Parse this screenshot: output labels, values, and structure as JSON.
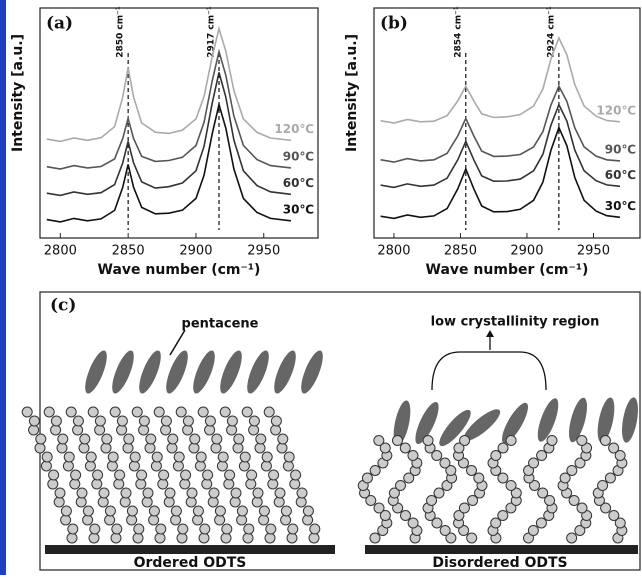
{
  "chart_data": [
    {
      "type": "line",
      "panel_label": "(a)",
      "x_label": "Wave number (cm⁻¹)",
      "y_label": "Intensity [a.u.]",
      "x": [
        2790,
        2800,
        2810,
        2820,
        2830,
        2840,
        2846,
        2850,
        2854,
        2860,
        2870,
        2880,
        2890,
        2900,
        2906,
        2912,
        2917,
        2922,
        2928,
        2935,
        2945,
        2955,
        2970
      ],
      "xlim": [
        2785,
        2990
      ],
      "xticks": [
        2800,
        2850,
        2900,
        2950
      ],
      "ylim": [
        0,
        10
      ],
      "series": [
        {
          "name": "30℃",
          "color": "#111111",
          "values": [
            0.8,
            0.7,
            0.85,
            0.75,
            0.83,
            1.2,
            2.2,
            3.2,
            2.2,
            1.33,
            1.05,
            1.08,
            1.21,
            1.72,
            2.74,
            4.53,
            5.8,
            4.78,
            3.0,
            1.72,
            1.11,
            0.85,
            0.75
          ]
        },
        {
          "name": "60℃",
          "color": "#333333",
          "values": [
            1.95,
            1.85,
            2.0,
            1.9,
            1.97,
            2.32,
            3.26,
            4.2,
            3.26,
            2.44,
            2.17,
            2.23,
            2.39,
            2.92,
            3.99,
            5.86,
            7.2,
            6.13,
            4.26,
            2.92,
            2.28,
            2.01,
            1.9
          ]
        },
        {
          "name": "90℃",
          "color": "#555555",
          "values": [
            3.1,
            3.0,
            3.15,
            3.05,
            3.11,
            3.44,
            4.32,
            5.2,
            4.32,
            3.55,
            3.33,
            3.37,
            3.51,
            4.02,
            5.04,
            6.83,
            8.1,
            7.08,
            5.3,
            4.02,
            3.41,
            3.15,
            3.05
          ]
        },
        {
          "name": "120℃",
          "color": "#aaaaaa",
          "values": [
            4.3,
            4.2,
            4.35,
            4.25,
            4.36,
            4.84,
            6.12,
            7.4,
            6.12,
            5.0,
            4.6,
            4.55,
            4.69,
            5.18,
            6.16,
            7.88,
            9.1,
            8.12,
            6.41,
            5.18,
            4.59,
            4.35,
            4.25
          ]
        }
      ],
      "annotations": [
        {
          "label": "2850 cm⁻¹",
          "x": 2850
        },
        {
          "label": "2917 cm⁻¹",
          "x": 2917
        }
      ]
    },
    {
      "type": "line",
      "panel_label": "(b)",
      "x_label": "Wave number (cm⁻¹)",
      "y_label": "Intensity [a.u.]",
      "x": [
        2790,
        2800,
        2810,
        2820,
        2830,
        2840,
        2848,
        2854,
        2860,
        2866,
        2875,
        2885,
        2895,
        2905,
        2912,
        2918,
        2924,
        2930,
        2936,
        2943,
        2952,
        2960,
        2970
      ],
      "xlim": [
        2785,
        2985
      ],
      "xticks": [
        2800,
        2850,
        2900,
        2950
      ],
      "ylim": [
        0,
        10
      ],
      "series": [
        {
          "name": "30℃",
          "color": "#111111",
          "values": [
            0.95,
            0.85,
            1.0,
            0.9,
            0.96,
            1.28,
            2.14,
            3.0,
            2.14,
            1.39,
            1.14,
            1.15,
            1.25,
            1.64,
            2.43,
            3.81,
            4.8,
            4.01,
            2.63,
            1.64,
            1.17,
            0.97,
            0.9
          ]
        },
        {
          "name": "60℃",
          "color": "#333333",
          "values": [
            2.3,
            2.2,
            2.35,
            2.25,
            2.3,
            2.6,
            3.4,
            4.2,
            3.4,
            2.7,
            2.47,
            2.48,
            2.56,
            2.92,
            3.64,
            4.9,
            5.8,
            5.08,
            3.82,
            2.92,
            2.49,
            2.31,
            2.25
          ]
        },
        {
          "name": "90℃",
          "color": "#555555",
          "values": [
            3.4,
            3.3,
            3.45,
            3.35,
            3.4,
            3.68,
            4.44,
            5.2,
            4.44,
            3.78,
            3.55,
            3.56,
            3.63,
            3.96,
            4.62,
            5.78,
            6.6,
            5.94,
            4.79,
            3.96,
            3.56,
            3.4,
            3.35
          ]
        },
        {
          "name": "120℃",
          "color": "#aaaaaa",
          "values": [
            5.1,
            5.0,
            5.15,
            5.05,
            5.08,
            5.32,
            5.96,
            6.6,
            5.96,
            5.4,
            5.24,
            5.27,
            5.37,
            5.74,
            6.48,
            7.78,
            8.7,
            7.96,
            6.67,
            5.74,
            5.3,
            5.11,
            5.05
          ]
        }
      ],
      "annotations": [
        {
          "label": "2854 cm⁻¹",
          "x": 2854
        },
        {
          "label": "2924 cm⁻¹",
          "x": 2924
        }
      ]
    }
  ],
  "diagram": {
    "panel_label": "(c)",
    "pentacene": "pentacene",
    "region": "low crystallinity  region",
    "ordered": "Ordered ODTS",
    "disordered": "Disordered ODTS"
  }
}
